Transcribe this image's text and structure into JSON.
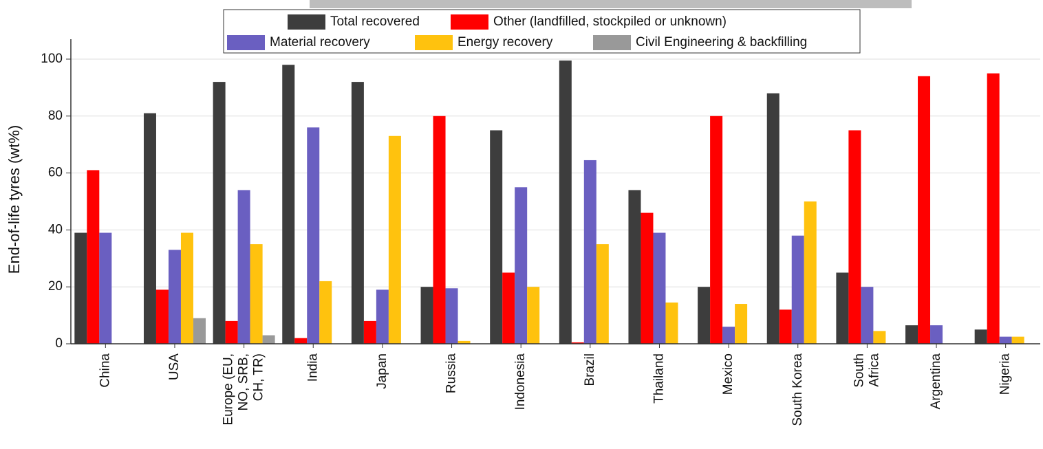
{
  "chart_data": {
    "type": "bar",
    "y_label": "End-of-life tyres (wt%)",
    "categories": [
      "China",
      "USA",
      [
        "Europe (EU,",
        "NO, SRB,",
        "CH, TR)"
      ],
      "India",
      "Japan",
      "Russia",
      "Indonesia",
      "Brazil",
      "Thailand",
      "Mexico",
      "South Korea",
      [
        "South",
        "Africa"
      ],
      "Argentina",
      "Nigeria"
    ],
    "series": [
      {
        "name": "Total recovered",
        "color": "#3d3d3d",
        "values": [
          39,
          81,
          92,
          98,
          92,
          20,
          75,
          99.5,
          54,
          20,
          88,
          25,
          6.5,
          5
        ]
      },
      {
        "name": "Other (landfilled, stockpiled or unknown)",
        "color": "#ff0000",
        "values": [
          61,
          19,
          8,
          2,
          8,
          80,
          25,
          0.5,
          46,
          80,
          12,
          75,
          94,
          95
        ]
      },
      {
        "name": "Material recovery",
        "color": "#6a5fc1",
        "values": [
          39,
          33,
          54,
          76,
          19,
          19.5,
          55,
          64.5,
          39,
          6,
          38,
          20,
          6.5,
          2.5
        ]
      },
      {
        "name": "Energy recovery",
        "color": "#ffc20e",
        "values": [
          0,
          39,
          35,
          22,
          73,
          1,
          20,
          35,
          14.5,
          14,
          50,
          4.5,
          0,
          2.5
        ]
      },
      {
        "name": "Civil Engineering & backfilling",
        "color": "#999999",
        "values": [
          0,
          9,
          3,
          0,
          0,
          0,
          0,
          0,
          0,
          0,
          0,
          0,
          0,
          0
        ]
      }
    ],
    "ylim": [
      0,
      107
    ],
    "yticks": [
      0,
      20,
      40,
      60,
      80,
      100
    ],
    "grid": true
  }
}
